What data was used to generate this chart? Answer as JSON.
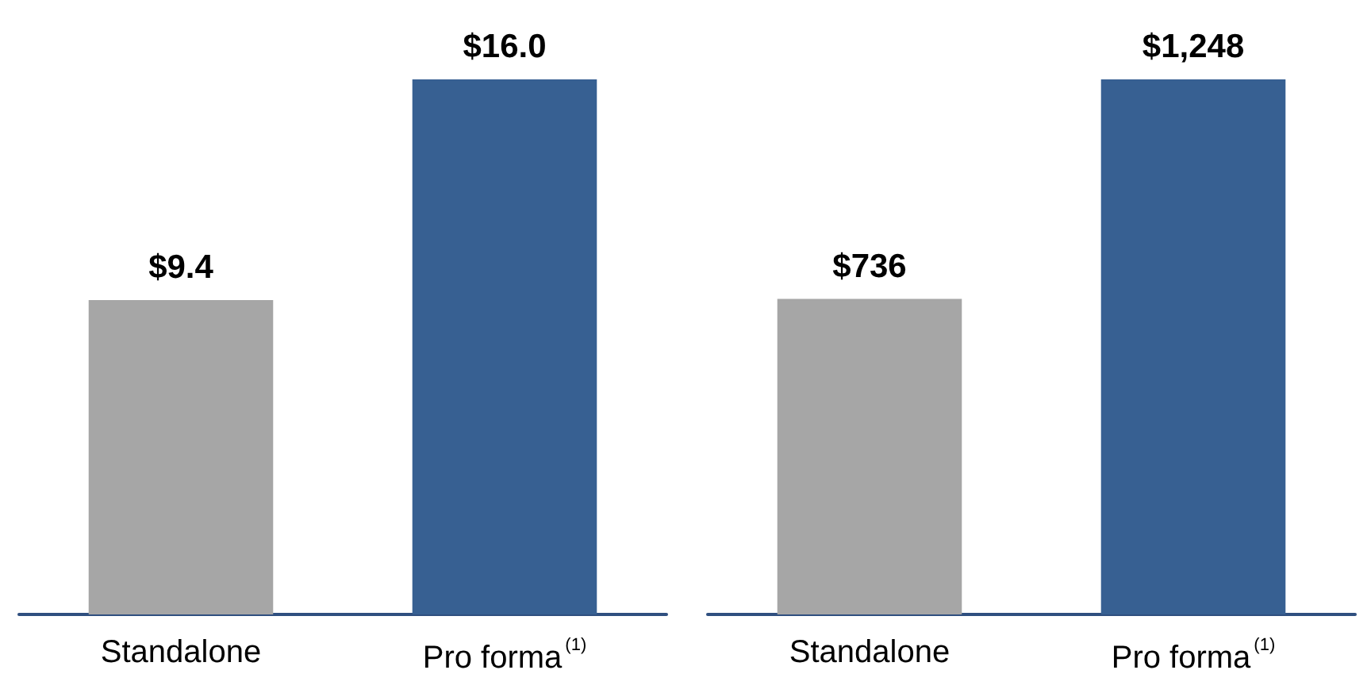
{
  "chart_data": [
    {
      "type": "bar",
      "categories": [
        "Standalone",
        "Pro forma$^{(1)}$"
      ],
      "values": [
        9.4,
        16.0
      ],
      "colors": [
        "#a6a6a6",
        "#376092"
      ],
      "value_labels": [
        "$9.4",
        "$16.0"
      ]
    },
    {
      "type": "bar",
      "categories": [
        "Standalone",
        "Pro forma$^{(1)}$"
      ],
      "values": [
        736,
        1248
      ],
      "colors": [
        "#a6a6a6",
        "#376092"
      ],
      "value_labels": [
        "$736",
        "$1,248"
      ]
    }
  ]
}
